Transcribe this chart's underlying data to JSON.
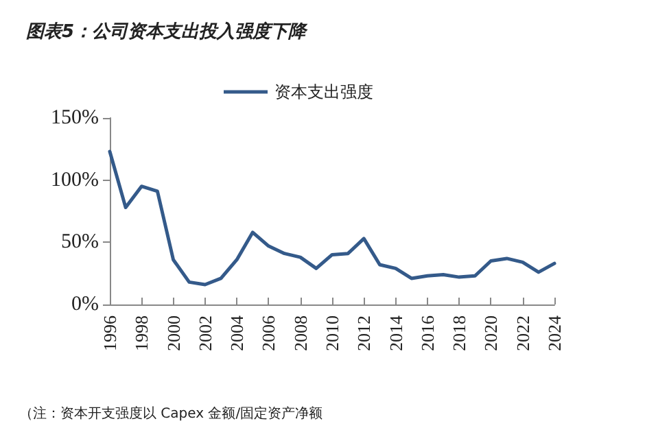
{
  "chart_data": {
    "type": "line",
    "title": "图表5：公司资本支出投入强度下降",
    "annotations": [
      "（注：资本开支强度以 Capex 金额/固定资产净额"
    ],
    "x": [
      1996,
      1997,
      1998,
      1999,
      2000,
      2001,
      2002,
      2003,
      2004,
      2005,
      2006,
      2007,
      2008,
      2009,
      2010,
      2011,
      2012,
      2013,
      2014,
      2015,
      2016,
      2017,
      2018,
      2019,
      2020,
      2021,
      2022,
      2023,
      2024
    ],
    "series": [
      {
        "name": "资本支出强度",
        "color": "#345a8a",
        "values": [
          123,
          78,
          95,
          91,
          36,
          18,
          16,
          21,
          36,
          58,
          47,
          41,
          38,
          29,
          40,
          41,
          53,
          32,
          29,
          21,
          23,
          24,
          22,
          23,
          35,
          37,
          34,
          26,
          33
        ]
      }
    ],
    "xlim": [
      1996,
      2024
    ],
    "xticks": [
      1996,
      1998,
      2000,
      2002,
      2004,
      2006,
      2008,
      2010,
      2012,
      2014,
      2016,
      2018,
      2020,
      2022,
      2024
    ],
    "ylim": [
      0,
      150
    ],
    "yticks": [
      {
        "value": 0,
        "label": "0%"
      },
      {
        "value": 50,
        "label": "50%"
      },
      {
        "value": 100,
        "label": "100%"
      },
      {
        "value": 150,
        "label": "150%"
      }
    ],
    "grid": false,
    "legend": "top",
    "marker": "none",
    "line_style": "solid"
  }
}
